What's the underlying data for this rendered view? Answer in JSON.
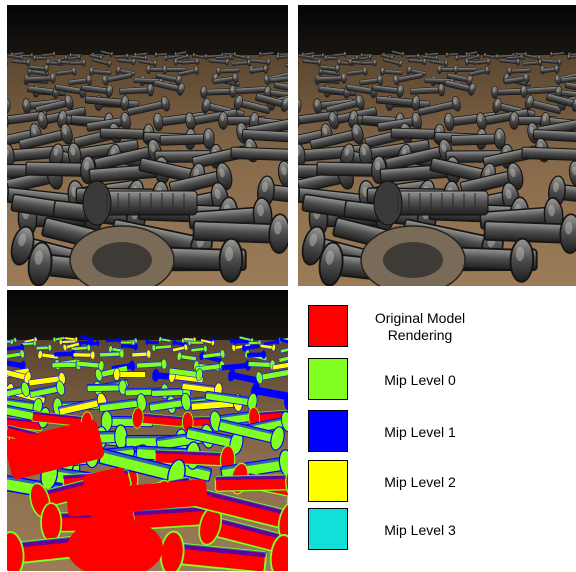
{
  "panels": [
    {
      "name": "original-render",
      "style": "textured"
    },
    {
      "name": "mip-render",
      "style": "textured"
    },
    {
      "name": "mip-level-visualization",
      "style": "colored"
    }
  ],
  "legend": {
    "items": [
      {
        "label": "Original Model\nRendering",
        "color": "#ff0000"
      },
      {
        "label": "Mip Level 0",
        "color": "#80ff20"
      },
      {
        "label": "Mip Level 1",
        "color": "#0000ff"
      },
      {
        "label": "Mip Level 2",
        "color": "#ffff00"
      },
      {
        "label": "Mip Level 3",
        "color": "#10e0d8"
      }
    ]
  }
}
